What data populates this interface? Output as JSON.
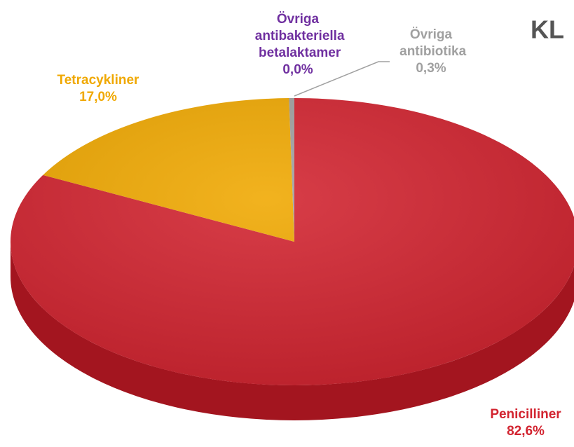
{
  "chart_data": {
    "type": "pie",
    "title": "KL",
    "categories": [
      "Penicilliner",
      "Tetracykliner",
      "Övriga antibiotika",
      "Övriga antibakteriella betalaktamer"
    ],
    "values": [
      82.6,
      17.0,
      0.3,
      0.0
    ],
    "value_labels": [
      "82,6%",
      "17,0%",
      "0,3%",
      "0,0%"
    ],
    "colors": [
      "#d2232f",
      "#f0a800",
      "#a0a0a0",
      "#7030a0"
    ]
  }
}
